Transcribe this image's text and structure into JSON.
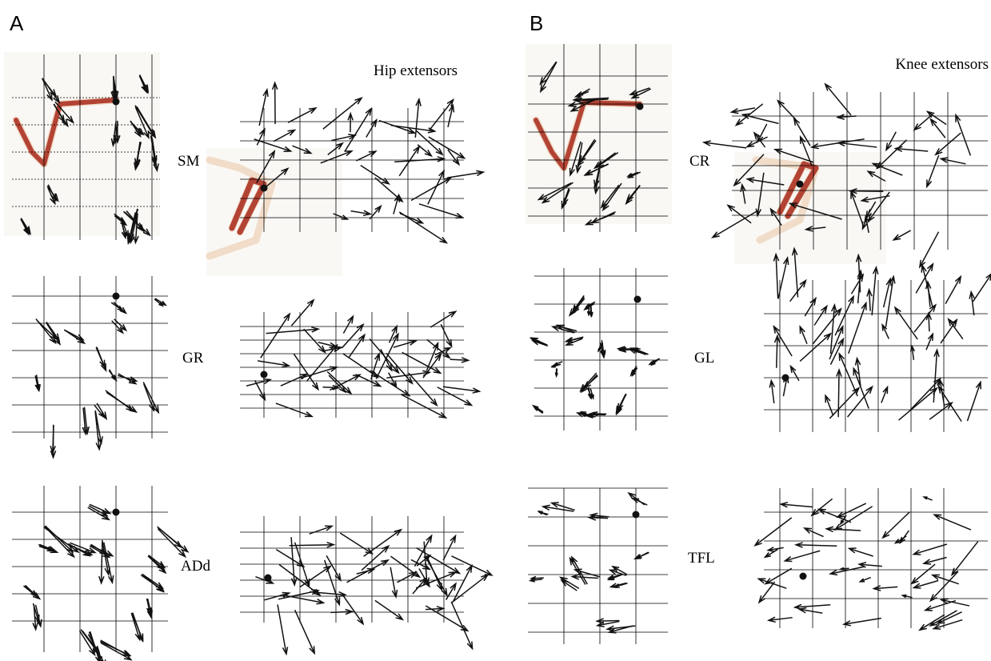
{
  "panels": [
    {
      "label": "A",
      "title": "Hip extensors",
      "muscles": [
        "SM",
        "GR",
        "ADd"
      ]
    },
    {
      "label": "B",
      "title": "Knee extensors",
      "muscles": [
        "CR",
        "GL",
        "TFL"
      ]
    }
  ]
}
